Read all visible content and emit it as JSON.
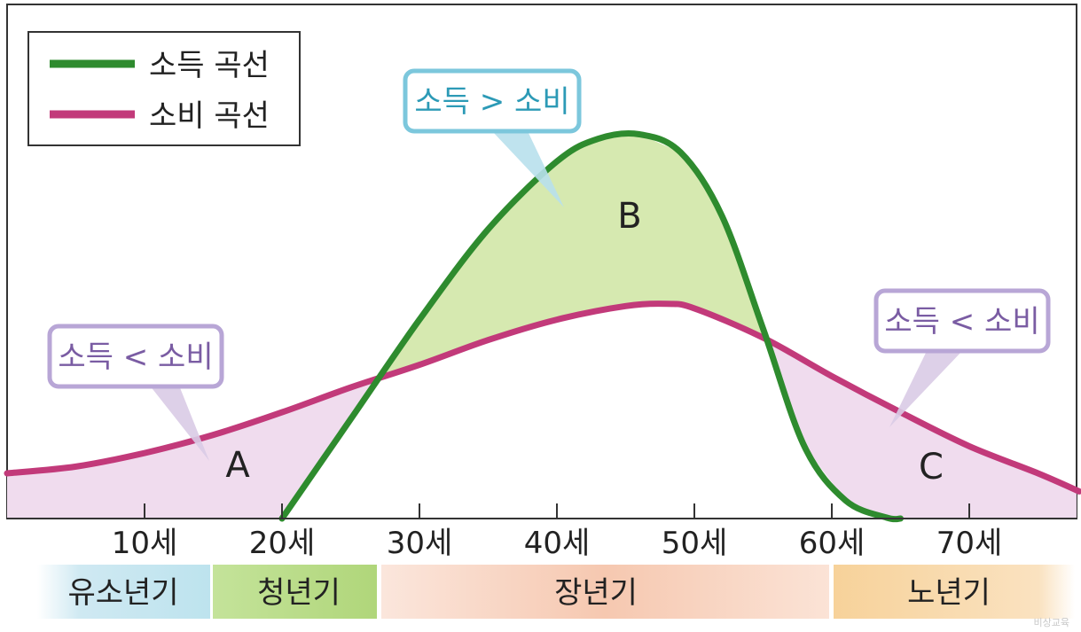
{
  "chart_data": {
    "type": "line",
    "title": "",
    "xlabel": "",
    "ylabel": "",
    "x_ticks": [
      "10세",
      "20세",
      "30세",
      "40세",
      "50세",
      "60세",
      "70세"
    ],
    "series": [
      {
        "name": "소득 곡선",
        "color": "#2e8b2e",
        "x": [
          20,
          25,
          30,
          35,
          40,
          43,
          46,
          49,
          52,
          55,
          58,
          61,
          64,
          65
        ],
        "y": [
          0,
          22,
          44,
          64,
          79,
          84,
          85,
          81,
          67,
          42,
          16,
          4,
          0.2,
          0
        ]
      },
      {
        "name": "소비 곡선",
        "color": "#c23a7a",
        "x": [
          0,
          5,
          10,
          15,
          20,
          25,
          30,
          35,
          40,
          45,
          48,
          50,
          55,
          60,
          65,
          70,
          75,
          78
        ],
        "y": [
          10,
          11.5,
          14.5,
          18.5,
          23.5,
          29,
          34,
          39.5,
          44,
          47,
          47.5,
          46.5,
          40,
          31.5,
          23.5,
          16,
          10,
          6
        ]
      }
    ],
    "regions": [
      {
        "label": "A",
        "fill": "#f0dcee"
      },
      {
        "label": "B",
        "fill": "#d6e9b0"
      },
      {
        "label": "C",
        "fill": "#f0dcee"
      }
    ],
    "legend_position": "top-left"
  },
  "callouts": {
    "left": "소득 < 소비",
    "center": "소득 > 소비",
    "right": "소득 < 소비"
  },
  "life_stages": [
    {
      "label": "유소년기",
      "color": "#bde3ee"
    },
    {
      "label": "청년기",
      "color": "#b6da82"
    },
    {
      "label": "장년기",
      "color": "#f5c3a8"
    },
    {
      "label": "노년기",
      "color": "#f7d39e"
    }
  ],
  "watermark": "비상교육"
}
